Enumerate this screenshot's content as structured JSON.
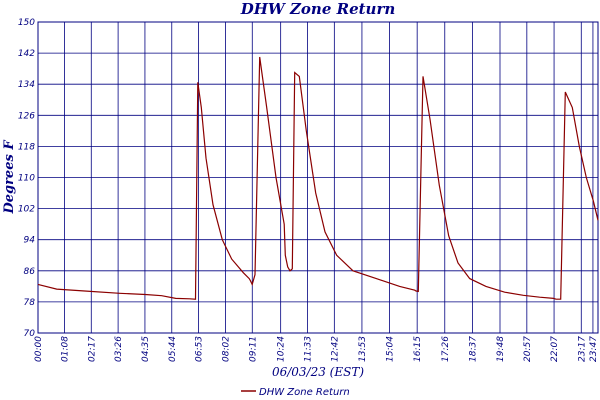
{
  "chart_data": {
    "type": "line",
    "title": "DHW Zone Return",
    "xlabel": "06/03/23 (EST)",
    "ylabel": "Degrees F",
    "ylim": [
      70,
      150
    ],
    "yticks": [
      70,
      78,
      86,
      94,
      102,
      110,
      118,
      126,
      134,
      142,
      150
    ],
    "xlim": [
      0,
      24
    ],
    "xtick_labels": [
      "00:00",
      "01:08",
      "02:17",
      "03:26",
      "04:35",
      "05:44",
      "06:53",
      "08:02",
      "09:11",
      "10:24",
      "11:33",
      "12:42",
      "13:53",
      "15:04",
      "16:15",
      "17:26",
      "18:37",
      "19:48",
      "20:57",
      "22:07",
      "23:17",
      "23:47"
    ],
    "xtick_hours": [
      0,
      1.133,
      2.283,
      3.433,
      4.583,
      5.733,
      6.883,
      8.033,
      9.183,
      10.4,
      11.55,
      12.7,
      13.883,
      15.067,
      16.25,
      17.433,
      18.617,
      19.8,
      20.95,
      22.117,
      23.283,
      23.783
    ],
    "grid": true,
    "legend_position": "bottom-center",
    "colors": {
      "series": "#8b0000",
      "grid": "#000080",
      "text": "#000080"
    },
    "series": [
      {
        "name": "DHW Zone Return",
        "x": [
          0,
          0.8,
          2.0,
          3.5,
          4.6,
          5.3,
          5.9,
          6.5,
          6.75,
          6.85,
          7.0,
          7.2,
          7.5,
          7.9,
          8.3,
          8.8,
          9.05,
          9.1,
          9.18,
          9.3,
          9.5,
          9.8,
          10.2,
          10.55,
          10.6,
          10.7,
          10.8,
          10.9,
          11.0,
          11.2,
          11.5,
          11.9,
          12.3,
          12.8,
          13.5,
          14.5,
          15.5,
          16.15,
          16.2,
          16.3,
          16.5,
          16.8,
          17.2,
          17.6,
          18.0,
          18.5,
          19.2,
          20.0,
          20.8,
          21.5,
          22.1,
          22.2,
          22.4,
          22.6,
          22.9,
          23.2,
          23.5,
          23.8,
          24.0
        ],
        "y": [
          82.5,
          81.3,
          80.8,
          80.2,
          79.9,
          79.6,
          78.9,
          78.8,
          78.7,
          134.5,
          128,
          115,
          103,
          94,
          89,
          85.5,
          84,
          83.5,
          82.5,
          85,
          141,
          128,
          110,
          98,
          90,
          87,
          86,
          86.5,
          137,
          136,
          122,
          106,
          96,
          90,
          86,
          84,
          82,
          81,
          80.8,
          80.7,
          136,
          125,
          108,
          95,
          88,
          84,
          82,
          80.5,
          79.7,
          79.2,
          78.9,
          78.7,
          78.7,
          132,
          128,
          118,
          110,
          104,
          99
        ]
      }
    ]
  }
}
